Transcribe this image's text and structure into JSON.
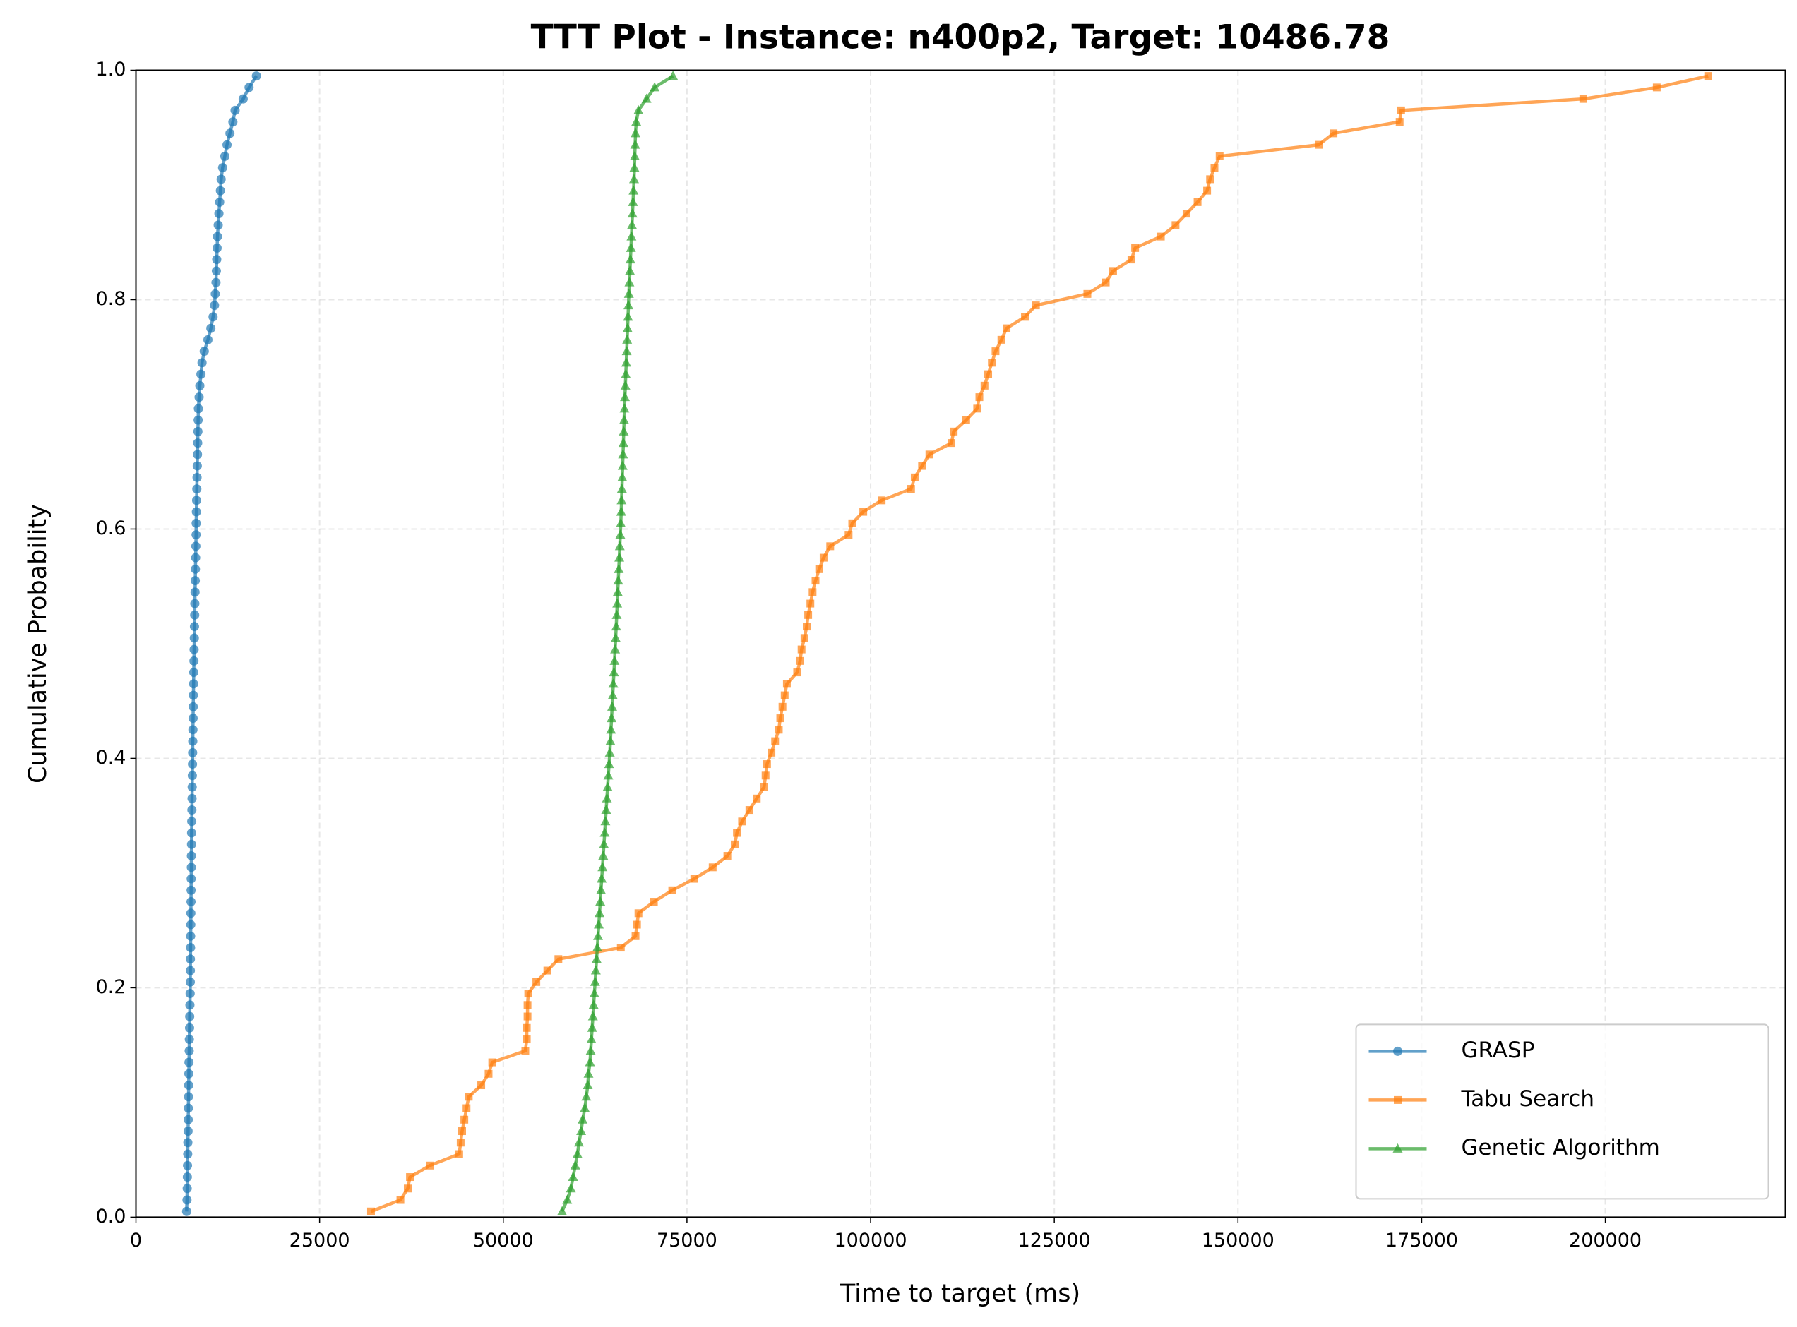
{
  "chart_data": {
    "type": "line",
    "title": "TTT Plot - Instance: n400p2, Target: 10486.78",
    "x_label": "Time to target (ms)",
    "y_label": "Cumulative Probability",
    "xlim": [
      0,
      224500
    ],
    "ylim": [
      0,
      1
    ],
    "xticks": [
      0,
      25000,
      50000,
      75000,
      100000,
      125000,
      150000,
      175000,
      200000
    ],
    "yticks": [
      {
        "value": 0,
        "label": "0.0"
      },
      0.2,
      0.4,
      0.6,
      0.8,
      {
        "value": 1,
        "label": "1.0"
      }
    ],
    "grid": true,
    "legend_position": "lower right",
    "series": [
      {
        "name": "GRASP",
        "color": "#1f77b4",
        "marker": "circle",
        "x": [
          6900,
          6950,
          6980,
          7000,
          7020,
          7050,
          7070,
          7100,
          7120,
          7140,
          7160,
          7180,
          7200,
          7220,
          7250,
          7270,
          7300,
          7320,
          7350,
          7380,
          7400,
          7410,
          7420,
          7440,
          7450,
          7470,
          7480,
          7500,
          7510,
          7520,
          7540,
          7550,
          7570,
          7580,
          7600,
          7620,
          7640,
          7660,
          7680,
          7700,
          7720,
          7740,
          7760,
          7780,
          7800,
          7820,
          7850,
          7870,
          7900,
          7920,
          7950,
          7970,
          8000,
          8020,
          8050,
          8080,
          8100,
          8130,
          8160,
          8190,
          8200,
          8230,
          8260,
          8290,
          8320,
          8350,
          8380,
          8410,
          8440,
          8470,
          8500,
          8600,
          8700,
          8850,
          9000,
          9300,
          9800,
          10200,
          10500,
          10700,
          10800,
          10900,
          10950,
          11000,
          11050,
          11100,
          11200,
          11300,
          11400,
          11500,
          11600,
          11800,
          12100,
          12400,
          12800,
          13200,
          13500,
          14600,
          15400,
          16400
        ],
        "values": [
          0.005,
          0.015,
          0.025,
          0.035,
          0.045,
          0.055,
          0.065,
          0.075,
          0.085,
          0.095,
          0.105,
          0.115,
          0.125,
          0.135,
          0.145,
          0.155,
          0.165,
          0.175,
          0.185,
          0.195,
          0.205,
          0.215,
          0.225,
          0.235,
          0.245,
          0.255,
          0.265,
          0.275,
          0.285,
          0.295,
          0.305,
          0.315,
          0.325,
          0.335,
          0.345,
          0.355,
          0.365,
          0.375,
          0.385,
          0.395,
          0.405,
          0.415,
          0.425,
          0.435,
          0.445,
          0.455,
          0.465,
          0.475,
          0.485,
          0.495,
          0.505,
          0.515,
          0.525,
          0.535,
          0.545,
          0.555,
          0.565,
          0.575,
          0.585,
          0.595,
          0.605,
          0.615,
          0.625,
          0.635,
          0.645,
          0.655,
          0.665,
          0.675,
          0.685,
          0.695,
          0.705,
          0.715,
          0.725,
          0.735,
          0.745,
          0.755,
          0.765,
          0.775,
          0.785,
          0.795,
          0.805,
          0.815,
          0.825,
          0.835,
          0.845,
          0.855,
          0.865,
          0.875,
          0.885,
          0.895,
          0.905,
          0.915,
          0.925,
          0.935,
          0.945,
          0.955,
          0.965,
          0.975,
          0.985,
          0.995
        ]
      },
      {
        "name": "Tabu Search",
        "color": "#ff7f0e",
        "marker": "square",
        "x": [
          32000,
          36000,
          37000,
          37300,
          40000,
          44000,
          44200,
          44400,
          44700,
          45000,
          45300,
          47000,
          48000,
          48500,
          53000,
          53200,
          53200,
          53300,
          53300,
          53400,
          54500,
          56000,
          57500,
          66000,
          68000,
          68200,
          68400,
          70500,
          73000,
          76000,
          78500,
          80500,
          81500,
          81800,
          82500,
          83500,
          84500,
          85500,
          85700,
          85900,
          86500,
          87000,
          87500,
          87700,
          88000,
          88300,
          88600,
          90000,
          90400,
          90600,
          91000,
          91300,
          91500,
          91800,
          92100,
          92500,
          93000,
          93600,
          94500,
          97000,
          97500,
          99000,
          101500,
          105500,
          106000,
          107000,
          108000,
          111000,
          111300,
          113000,
          114500,
          114800,
          115500,
          116000,
          116500,
          117000,
          117800,
          118500,
          121000,
          122500,
          129500,
          132000,
          133000,
          135500,
          136000,
          139500,
          141500,
          143000,
          144500,
          145800,
          146200,
          146800,
          147500,
          161000,
          163000,
          172000,
          172200,
          197000,
          207000,
          214000
        ],
        "values": [
          0.005,
          0.015,
          0.025,
          0.035,
          0.045,
          0.055,
          0.065,
          0.075,
          0.085,
          0.095,
          0.105,
          0.115,
          0.125,
          0.135,
          0.145,
          0.155,
          0.165,
          0.175,
          0.185,
          0.195,
          0.205,
          0.215,
          0.225,
          0.235,
          0.245,
          0.255,
          0.265,
          0.275,
          0.285,
          0.295,
          0.305,
          0.315,
          0.325,
          0.335,
          0.345,
          0.355,
          0.365,
          0.375,
          0.385,
          0.395,
          0.405,
          0.415,
          0.425,
          0.435,
          0.445,
          0.455,
          0.465,
          0.475,
          0.485,
          0.495,
          0.505,
          0.515,
          0.525,
          0.535,
          0.545,
          0.555,
          0.565,
          0.575,
          0.585,
          0.595,
          0.605,
          0.615,
          0.625,
          0.635,
          0.645,
          0.655,
          0.665,
          0.675,
          0.685,
          0.695,
          0.705,
          0.715,
          0.725,
          0.735,
          0.745,
          0.755,
          0.765,
          0.775,
          0.785,
          0.795,
          0.805,
          0.815,
          0.825,
          0.835,
          0.845,
          0.855,
          0.865,
          0.875,
          0.885,
          0.895,
          0.905,
          0.915,
          0.925,
          0.935,
          0.945,
          0.955,
          0.965,
          0.975,
          0.985,
          0.995
        ]
      },
      {
        "name": "Genetic Algorithm",
        "color": "#2ca02c",
        "marker": "triangle",
        "x": [
          58000,
          58700,
          59200,
          59500,
          59800,
          60100,
          60300,
          60600,
          60800,
          61100,
          61300,
          61500,
          61600,
          61800,
          61900,
          62000,
          62100,
          62200,
          62300,
          62400,
          62500,
          62600,
          62700,
          62800,
          62900,
          63000,
          63100,
          63200,
          63300,
          63400,
          63500,
          63600,
          63700,
          63800,
          63900,
          64000,
          64100,
          64200,
          64300,
          64400,
          64500,
          64580,
          64660,
          64740,
          64820,
          64900,
          64980,
          65060,
          65140,
          65220,
          65300,
          65370,
          65440,
          65510,
          65580,
          65650,
          65720,
          65790,
          65860,
          65930,
          66000,
          66050,
          66100,
          66150,
          66200,
          66250,
          66300,
          66350,
          66400,
          66450,
          66500,
          66560,
          66620,
          66680,
          66740,
          66800,
          66860,
          66920,
          66980,
          67040,
          67100,
          67170,
          67240,
          67310,
          67380,
          67450,
          67520,
          67590,
          67660,
          67730,
          67800,
          67850,
          67900,
          67950,
          68000,
          68100,
          68400,
          69500,
          70600,
          73100
        ],
        "values": [
          0.005,
          0.015,
          0.025,
          0.035,
          0.045,
          0.055,
          0.065,
          0.075,
          0.085,
          0.095,
          0.105,
          0.115,
          0.125,
          0.135,
          0.145,
          0.155,
          0.165,
          0.175,
          0.185,
          0.195,
          0.205,
          0.215,
          0.225,
          0.235,
          0.245,
          0.255,
          0.265,
          0.275,
          0.285,
          0.295,
          0.305,
          0.315,
          0.325,
          0.335,
          0.345,
          0.355,
          0.365,
          0.375,
          0.385,
          0.395,
          0.405,
          0.415,
          0.425,
          0.435,
          0.445,
          0.455,
          0.465,
          0.475,
          0.485,
          0.495,
          0.505,
          0.515,
          0.525,
          0.535,
          0.545,
          0.555,
          0.565,
          0.575,
          0.585,
          0.595,
          0.605,
          0.615,
          0.625,
          0.635,
          0.645,
          0.655,
          0.665,
          0.675,
          0.685,
          0.695,
          0.705,
          0.715,
          0.725,
          0.735,
          0.745,
          0.755,
          0.765,
          0.775,
          0.785,
          0.795,
          0.805,
          0.815,
          0.825,
          0.835,
          0.845,
          0.855,
          0.865,
          0.875,
          0.885,
          0.895,
          0.905,
          0.915,
          0.925,
          0.935,
          0.945,
          0.955,
          0.965,
          0.975,
          0.985,
          0.995
        ]
      }
    ]
  }
}
